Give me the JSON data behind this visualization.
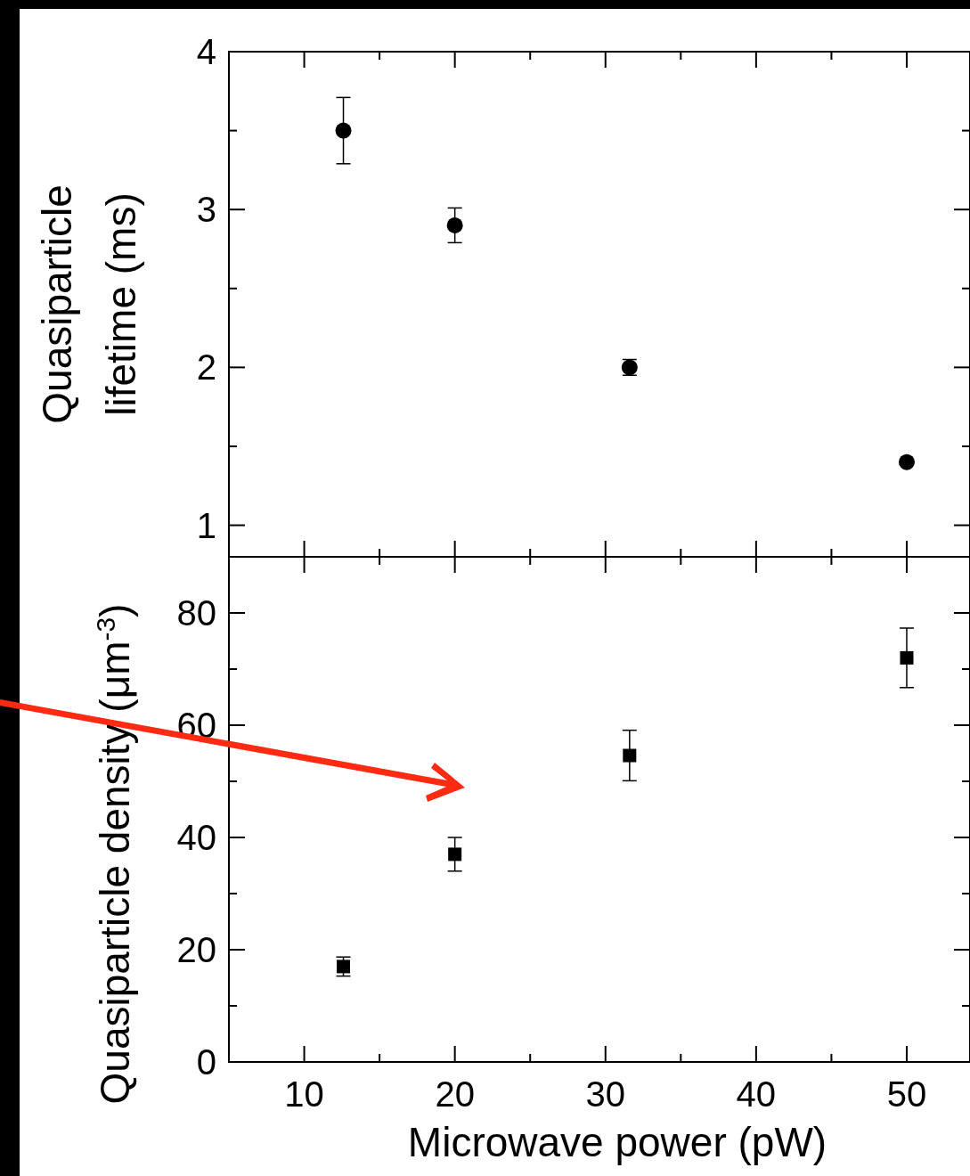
{
  "chart_data": [
    {
      "type": "scatter",
      "ylabel": "Quasiparticle\nlifetime (ms)",
      "marker": "circle",
      "x": [
        12.6,
        20,
        31.6,
        50
      ],
      "series": [
        {
          "color": "#000000",
          "values": [
            3.5,
            2.9,
            2.0,
            1.4
          ],
          "errors": [
            0.21,
            0.11,
            0.05,
            null
          ]
        }
      ],
      "xlim": [
        5,
        54.2
      ],
      "ylim": [
        0.8,
        4
      ],
      "xticks": [
        10,
        {
          "value": 15,
          "label": null
        },
        20,
        {
          "value": 25,
          "label": null
        },
        30,
        {
          "value": 35,
          "label": null
        },
        40,
        {
          "value": 45,
          "label": null
        },
        50
      ],
      "yticks": [
        1,
        {
          "value": 1.5,
          "label": null
        },
        2,
        {
          "value": 2.5,
          "label": null
        },
        3,
        {
          "value": 3.5,
          "label": null
        },
        4
      ],
      "tick_labels": "y"
    },
    {
      "type": "scatter",
      "ylabel": "Quasiparticle density (μm$^{-3}$)",
      "xlabel": "Microwave power (pW)",
      "marker": "square",
      "x": [
        12.6,
        20,
        31.6,
        50
      ],
      "series": [
        {
          "color": "#000000",
          "values": [
            17,
            37,
            54.6,
            72
          ],
          "errors": [
            1.7,
            3,
            4.5,
            5.3
          ]
        }
      ],
      "xlim": [
        5,
        54.2
      ],
      "ylim": [
        0,
        90
      ],
      "xticks": [
        10,
        {
          "value": 15,
          "label": null
        },
        20,
        {
          "value": 25,
          "label": null
        },
        30,
        {
          "value": 35,
          "label": null
        },
        40,
        {
          "value": 45,
          "label": null
        },
        50
      ],
      "yticks": [
        0,
        {
          "value": 10,
          "label": null
        },
        20,
        {
          "value": 30,
          "label": null
        },
        40,
        {
          "value": 50,
          "label": null
        },
        60,
        {
          "value": 70,
          "label": null
        },
        80
      ]
    }
  ]
}
